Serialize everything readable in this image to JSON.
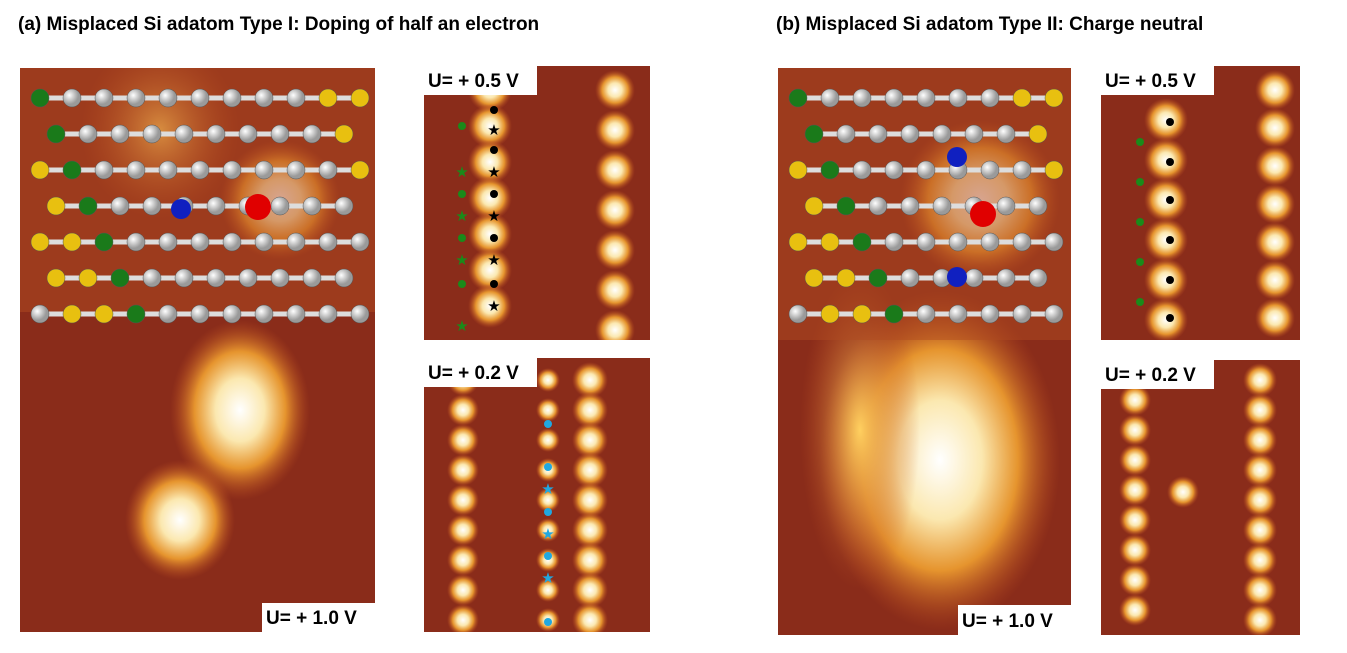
{
  "panels": [
    {
      "title": "(a)  Misplaced Si adatom Type I:  Doping of half an electron",
      "images": [
        {
          "label": "U= + 1.0 V"
        },
        {
          "label": "U= + 0.5 V"
        },
        {
          "label": "U= + 0.2 V"
        }
      ]
    },
    {
      "title": "(b)  Misplaced Si adatom Type II:  Charge neutral",
      "images": [
        {
          "label": "U= + 1.0 V"
        },
        {
          "label": "U= + 0.5 V"
        },
        {
          "label": "U= + 0.2 V"
        }
      ]
    }
  ]
}
